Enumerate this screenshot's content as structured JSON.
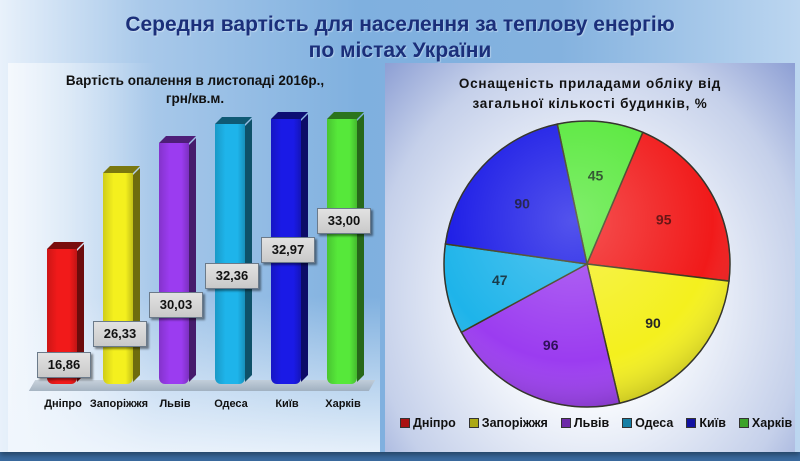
{
  "title": {
    "line1": "Середня вартість для населення за теплову енергію",
    "line2": "по містах України"
  },
  "colors": {
    "Дніпро": "#f11a1a",
    "Запоріжжя": "#f4f01e",
    "Львів": "#9b3cf0",
    "Одеса": "#1eb4ea",
    "Київ": "#1a1ae6",
    "Харків": "#56e83a"
  },
  "chart_data": [
    {
      "type": "bar",
      "title": "Вартість опалення в листопаді 2016р., грн/кв.м.",
      "title_lines": [
        "Вартість опалення в листопаді 2016р.,",
        "грн/кв.м."
      ],
      "categories": [
        "Дніпро",
        "Запоріжжя",
        "Львів",
        "Одеса",
        "Київ",
        "Харків"
      ],
      "values": [
        16.86,
        26.33,
        30.03,
        32.36,
        32.97,
        33.0
      ],
      "value_labels": [
        "16,86",
        "26,33",
        "30,03",
        "32,36",
        "32,97",
        "33,00"
      ],
      "xlabel": "",
      "ylabel": "",
      "grid": false,
      "legend": "none",
      "style": "3d-bar"
    },
    {
      "type": "pie",
      "title": "Оснащеність приладами обліку від загальної кількості будинків, %",
      "title_lines": [
        "Оснащеність приладами обліку від",
        "загальної кількості будинків, %"
      ],
      "categories": [
        "Дніпро",
        "Запоріжжя",
        "Львів",
        "Одеса",
        "Київ",
        "Харків"
      ],
      "values": [
        95,
        90,
        96,
        47,
        90,
        45
      ],
      "value_labels": [
        "95",
        "90",
        "96",
        "47",
        "90",
        "45"
      ],
      "legend": "bottom"
    }
  ]
}
